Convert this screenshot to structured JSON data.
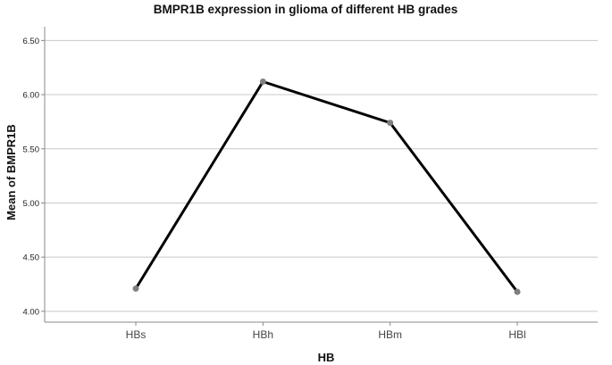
{
  "chart_data": {
    "type": "line",
    "title": "BMPR1B expression in glioma of different HB grades",
    "xlabel": "HB",
    "ylabel": "Mean of BMPR1B",
    "categories": [
      "HBs",
      "HBh",
      "HBm",
      "HBl"
    ],
    "series": [
      {
        "values": [
          4.21,
          6.12,
          5.74,
          4.18
        ]
      }
    ],
    "ylim": [
      3.9,
      6.61
    ],
    "yticks": [
      4.0,
      4.5,
      5.0,
      5.5,
      6.0,
      6.5
    ],
    "ytick_labels": [
      "4.00",
      "4.50",
      "5.00",
      "5.50",
      "6.00",
      "6.50"
    ],
    "grid": true,
    "legend": "none",
    "colors": {
      "line": "#000000",
      "marker": "#7f7f7f",
      "grid": "#c8c8c8",
      "axis": "#888888"
    }
  }
}
